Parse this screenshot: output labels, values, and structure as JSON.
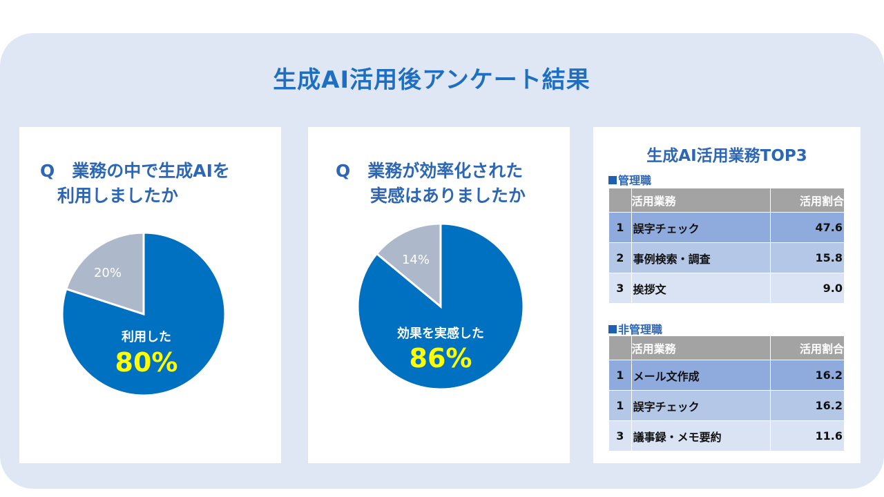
{
  "title": "生成AI活用後アンケート結果",
  "colors": {
    "primary": "#0070c0",
    "secondary": "#adb9ca",
    "highlight": "#ffff00",
    "heading": "#2d66b4"
  },
  "chart_data": [
    {
      "type": "pie",
      "question_line1": "Q　業務の中で生成AIを",
      "question_line2": "　利用しましたか",
      "slices": [
        {
          "label": "利用した",
          "value": 80,
          "display": "80%",
          "color": "#0070c0"
        },
        {
          "value": 20,
          "display": "20%",
          "color": "#adb9ca"
        }
      ]
    },
    {
      "type": "pie",
      "question_line1": "Q　業務が効率化された",
      "question_line2": "　　実感はありましたか",
      "slices": [
        {
          "label": "効果を実感した",
          "value": 86,
          "display": "86%",
          "color": "#0070c0"
        },
        {
          "value": 14,
          "display": "14%",
          "color": "#adb9ca"
        }
      ]
    }
  ],
  "top3": {
    "title": "生成AI活用業務TOP3",
    "header_task": "活用業務",
    "header_rate": "活用割合",
    "sections": [
      {
        "label": "管理職",
        "rows": [
          {
            "rank": "1",
            "task": "誤字チェック",
            "rate": "47.6"
          },
          {
            "rank": "2",
            "task": "事例検索・調査",
            "rate": "15.8"
          },
          {
            "rank": "3",
            "task": "挨拶文",
            "rate": "9.0"
          }
        ]
      },
      {
        "label": "非管理職",
        "rows": [
          {
            "rank": "1",
            "task": "メール文作成",
            "rate": "16.2"
          },
          {
            "rank": "1",
            "task": "誤字チェック",
            "rate": "16.2"
          },
          {
            "rank": "3",
            "task": "議事録・メモ要約",
            "rate": "11.6"
          }
        ]
      }
    ]
  }
}
